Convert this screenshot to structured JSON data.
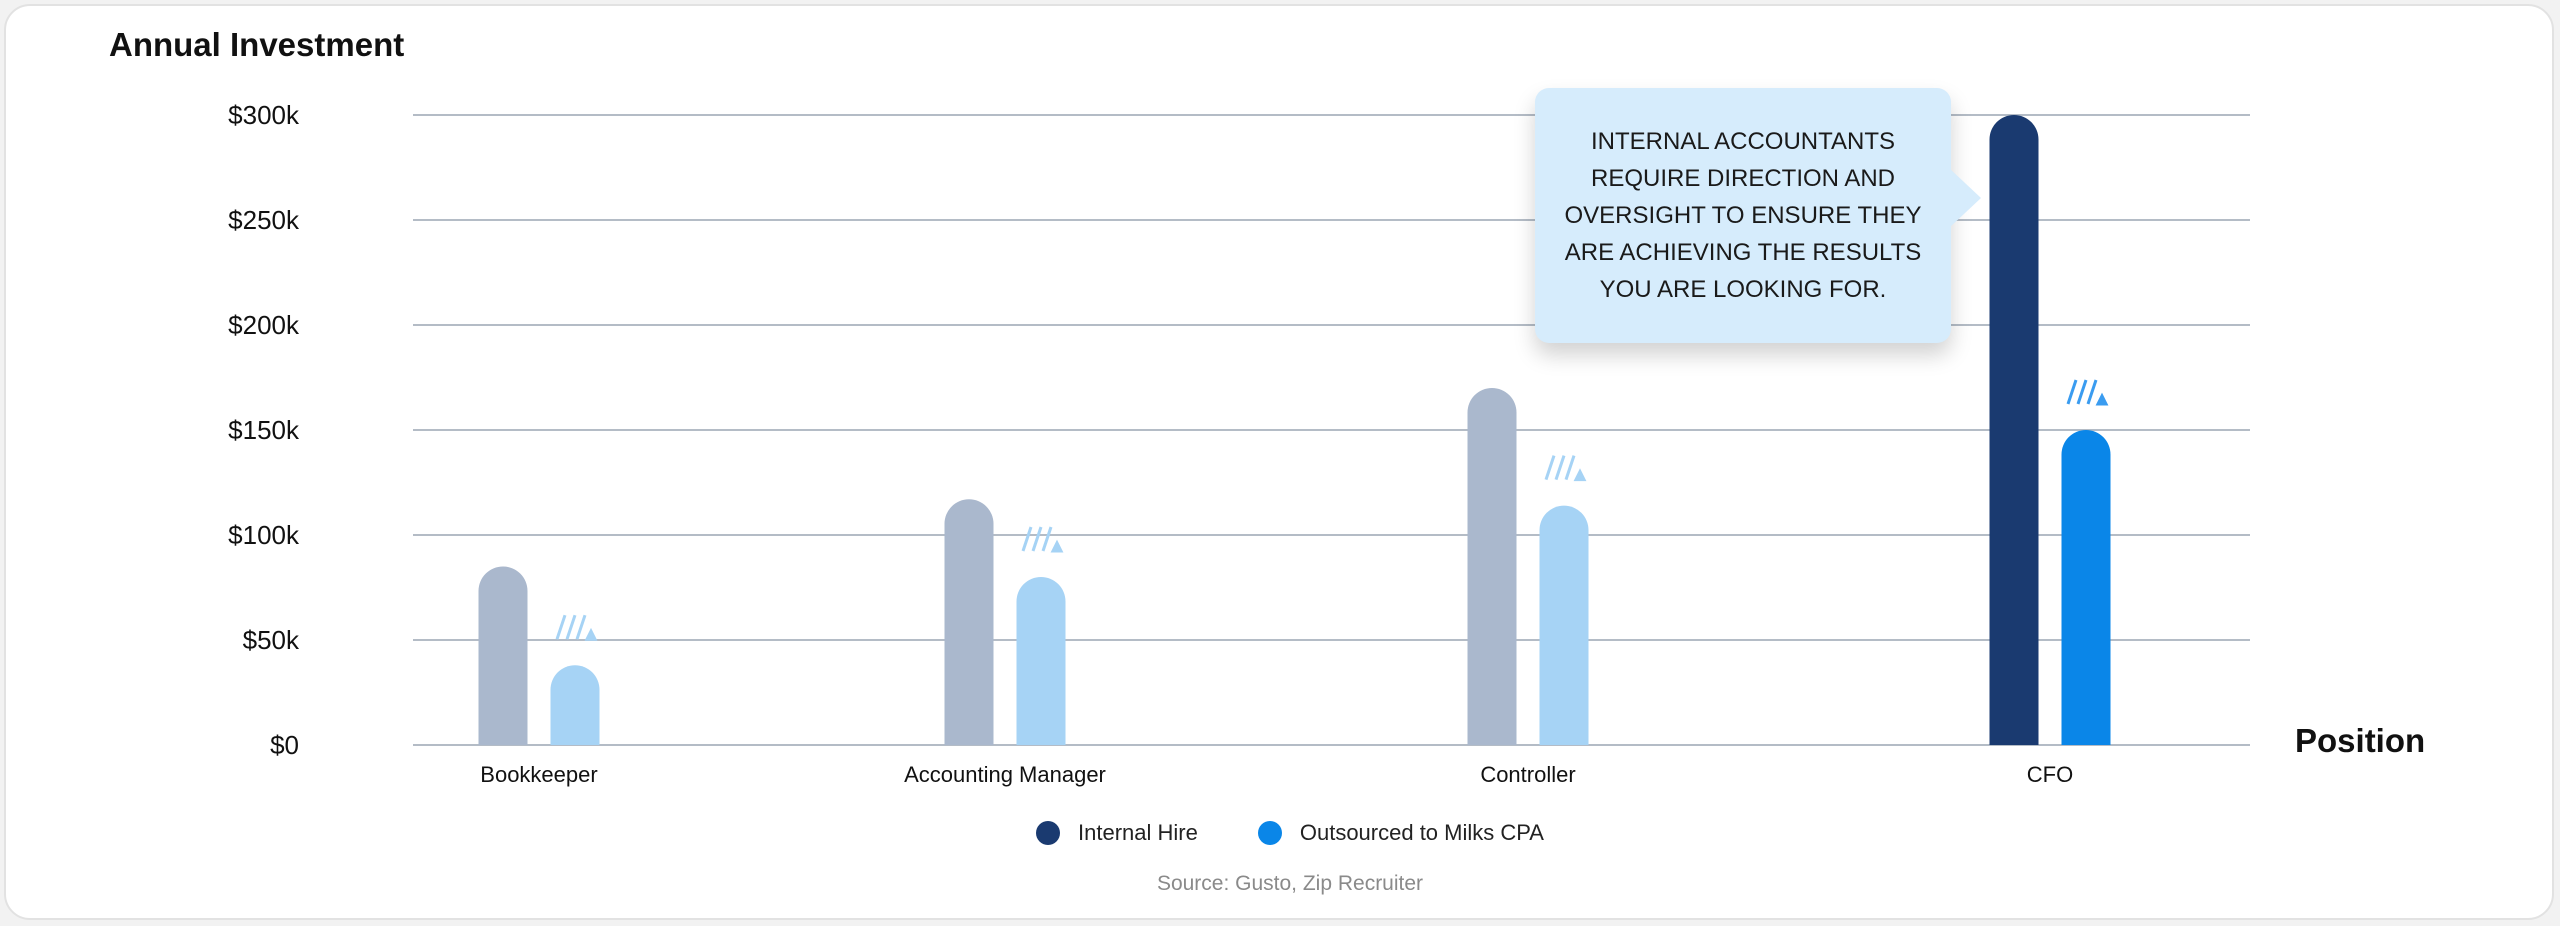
{
  "chart_data": {
    "type": "bar",
    "title": "Annual Investment",
    "xlabel": "Position",
    "ylabel": "Annual Investment",
    "categories": [
      "Bookkeeper",
      "Accounting Manager",
      "Controller",
      "CFO"
    ],
    "series": [
      {
        "name": "Internal Hire",
        "values": [
          85000,
          117000,
          170000,
          300000
        ],
        "color": "#1a3a70",
        "faded_color": "#aab8cd"
      },
      {
        "name": "Outsourced to Milks CPA",
        "values": [
          38000,
          80000,
          114000,
          150000
        ],
        "color": "#0a86e8",
        "faded_color": "#a6d3f5"
      }
    ],
    "highlighted_category": "CFO",
    "ylim": [
      0,
      300000
    ],
    "yticks": [
      0,
      50000,
      100000,
      150000,
      200000,
      250000,
      300000
    ],
    "ytick_labels": [
      "$0",
      "$50k",
      "$100k",
      "$150k",
      "$200k",
      "$250k",
      "$300k"
    ],
    "grid": true,
    "legend_position": "bottom-center",
    "annotation": "INTERNAL ACCOUNTANTS REQUIRE DIRECTION AND OVERSIGHT TO ENSURE THEY ARE ACHIEVING THE RESULTS YOU ARE LOOKING FOR.",
    "source": "Source: Gusto, Zip Recruiter"
  }
}
